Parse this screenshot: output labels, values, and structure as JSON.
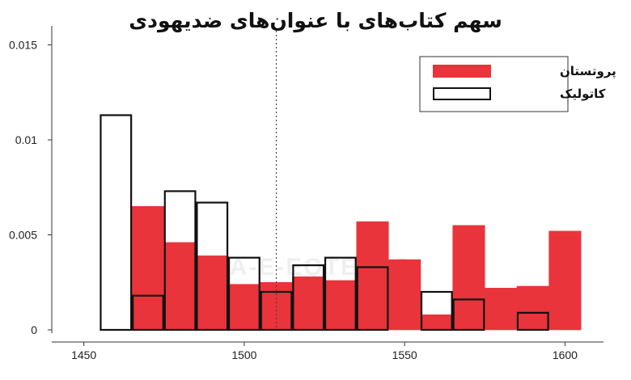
{
  "chart_data": {
    "type": "bar",
    "title": "سهم کتاب‌های با عنوان‌های ضدیهودی",
    "xlabel": "",
    "ylabel": "",
    "xlim": [
      1440,
      1612
    ],
    "ylim": [
      0,
      0.016
    ],
    "bin_width": 10,
    "x_ticks": [
      1450,
      1500,
      1550,
      1600
    ],
    "y_ticks": [
      {
        "value": 0,
        "label": "0"
      },
      {
        "value": 0.005,
        "label": "0.005"
      },
      {
        "value": 0.01,
        "label": "0.01"
      },
      {
        "value": 0.015,
        "label": "0.015"
      }
    ],
    "reference_line_x": 1510,
    "legend_position": "top-right",
    "series": [
      {
        "name": "پروتستان",
        "color": "#e8343a",
        "style": "filled",
        "bins": [
          {
            "start": 1465,
            "value": 0.0065
          },
          {
            "start": 1475,
            "value": 0.0046
          },
          {
            "start": 1485,
            "value": 0.0039
          },
          {
            "start": 1495,
            "value": 0.0024
          },
          {
            "start": 1505,
            "value": 0.0025
          },
          {
            "start": 1515,
            "value": 0.0028
          },
          {
            "start": 1525,
            "value": 0.0026
          },
          {
            "start": 1535,
            "value": 0.0057
          },
          {
            "start": 1545,
            "value": 0.0037
          },
          {
            "start": 1555,
            "value": 0.0008
          },
          {
            "start": 1565,
            "value": 0.0055
          },
          {
            "start": 1575,
            "value": 0.0022
          },
          {
            "start": 1585,
            "value": 0.0023
          },
          {
            "start": 1595,
            "value": 0.0052
          }
        ]
      },
      {
        "name": "کاتولیک",
        "color": "#111111",
        "style": "outline",
        "bins": [
          {
            "start": 1455,
            "value": 0.0113
          },
          {
            "start": 1465,
            "value": 0.0018
          },
          {
            "start": 1475,
            "value": 0.0073
          },
          {
            "start": 1485,
            "value": 0.0067
          },
          {
            "start": 1495,
            "value": 0.0038
          },
          {
            "start": 1505,
            "value": 0.002
          },
          {
            "start": 1515,
            "value": 0.0034
          },
          {
            "start": 1525,
            "value": 0.0038
          },
          {
            "start": 1535,
            "value": 0.0033
          },
          {
            "start": 1555,
            "value": 0.002
          },
          {
            "start": 1565,
            "value": 0.0016
          },
          {
            "start": 1585,
            "value": 0.0009
          }
        ]
      }
    ]
  },
  "watermark": "DONYA-E-EQTESAD"
}
